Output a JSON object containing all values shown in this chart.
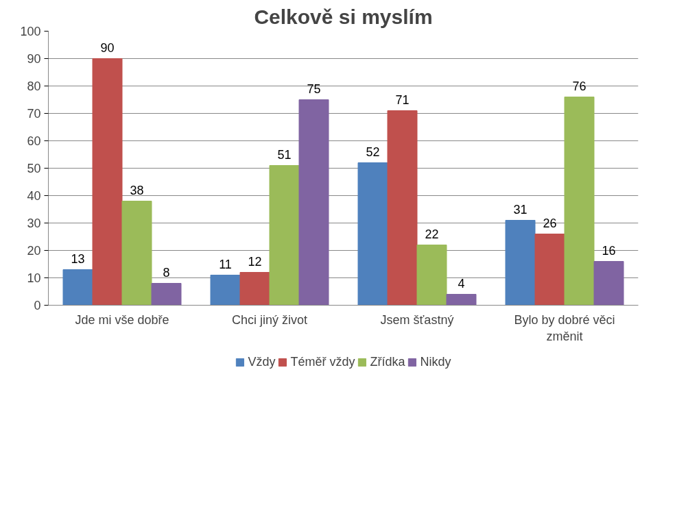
{
  "chart_data": {
    "type": "bar",
    "title": "Celkově si myslím",
    "categories": [
      "Jde mi vše dobře",
      "Chci jiný život",
      "Jsem šťastný",
      "Bylo by dobré věci změnit"
    ],
    "series": [
      {
        "name": "Vždy",
        "color": "#4f81bd",
        "values": [
          13,
          11,
          52,
          31
        ]
      },
      {
        "name": "Téměř vždy",
        "color": "#c0504d",
        "values": [
          90,
          12,
          71,
          26
        ]
      },
      {
        "name": "Zřídka",
        "color": "#9bbb59",
        "values": [
          38,
          51,
          22,
          76
        ]
      },
      {
        "name": "Nikdy",
        "color": "#8064a2",
        "values": [
          8,
          75,
          4,
          16
        ]
      }
    ],
    "ylim": [
      0,
      100
    ],
    "yticks": [
      0,
      10,
      20,
      30,
      40,
      50,
      60,
      70,
      80,
      90,
      100
    ],
    "grid": "y",
    "legend": "bottom",
    "data_labels": true
  }
}
